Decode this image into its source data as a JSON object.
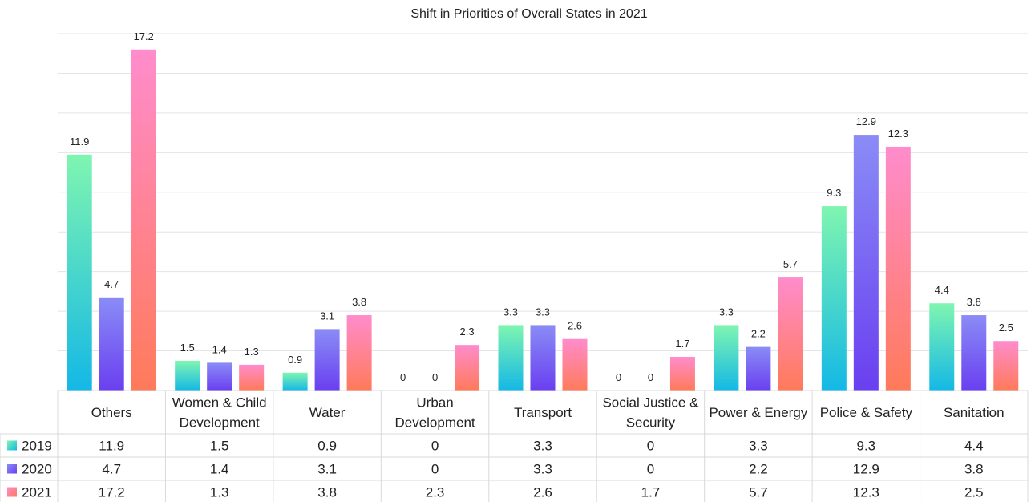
{
  "chart_data": {
    "type": "bar",
    "title": "Shift in Priorities of Overall States in 2021",
    "categories": [
      [
        "Others"
      ],
      [
        "Women & Child",
        "Development"
      ],
      [
        "Water"
      ],
      [
        "Urban",
        "Development"
      ],
      [
        "Transport"
      ],
      [
        "Social Justice &",
        "Security"
      ],
      [
        "Power & Energy"
      ],
      [
        "Police & Safety"
      ],
      [
        "Sanitation"
      ]
    ],
    "series": [
      {
        "name": "2019",
        "values": [
          11.9,
          1.5,
          0.9,
          0,
          3.3,
          0,
          3.3,
          9.3,
          4.4
        ],
        "gradient": [
          "#7ff5b0",
          "#14b8e6"
        ]
      },
      {
        "name": "2020",
        "values": [
          4.7,
          1.4,
          3.1,
          0,
          3.3,
          0,
          2.2,
          12.9,
          3.8
        ],
        "gradient": [
          "#8a8cf6",
          "#6a3ff0"
        ]
      },
      {
        "name": "2021",
        "values": [
          17.2,
          1.3,
          3.8,
          2.3,
          2.6,
          1.7,
          5.7,
          12.3,
          2.5
        ],
        "gradient": [
          "#ff8ccc",
          "#ff7a5a"
        ]
      }
    ],
    "ylim": [
      0,
      18
    ],
    "grid": true,
    "data_table": true,
    "legend": "data-table"
  }
}
